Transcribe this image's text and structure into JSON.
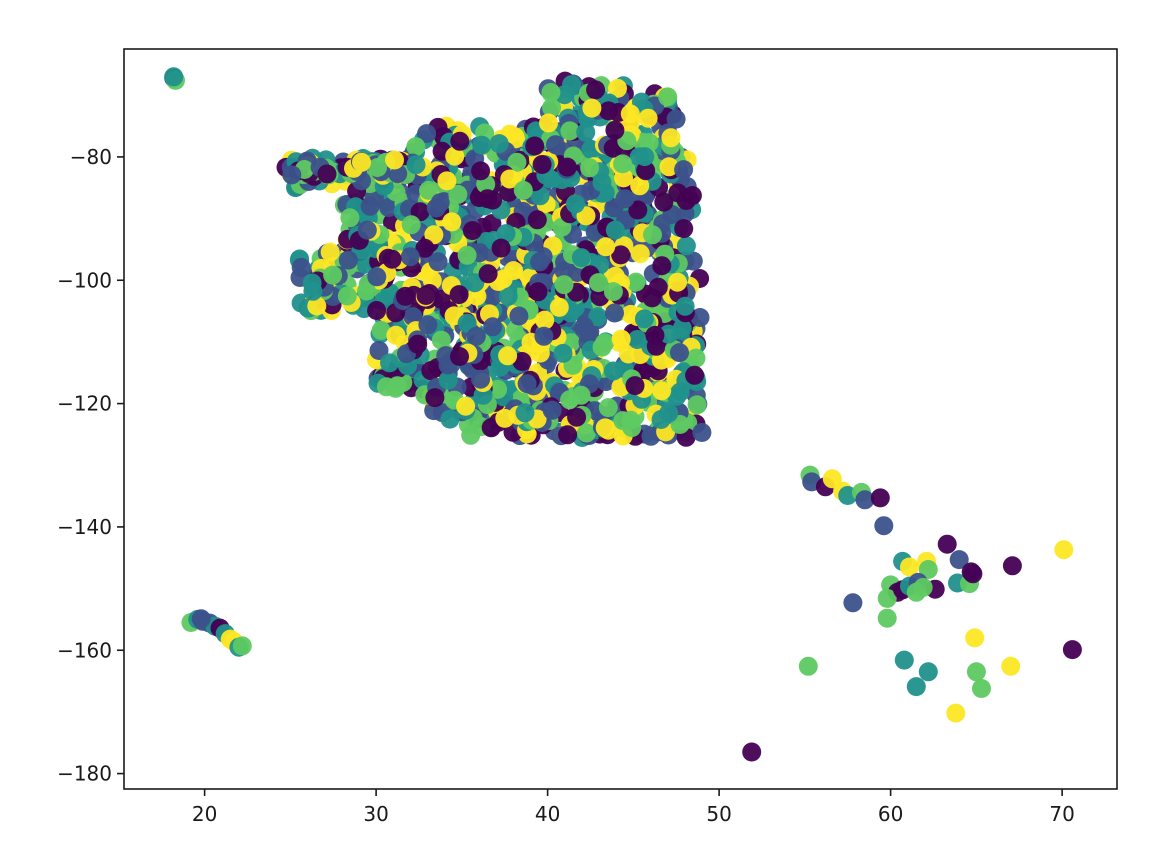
{
  "chart_data": {
    "type": "scatter",
    "title": "",
    "xlabel": "",
    "ylabel": "",
    "xlim": [
      15.3,
      73.2
    ],
    "ylim": [
      -182.5,
      -62.5
    ],
    "x_ticks": [
      20,
      30,
      40,
      50,
      60,
      70
    ],
    "y_ticks": [
      -180,
      -160,
      -140,
      -120,
      -100,
      -80
    ],
    "x_tick_labels": [
      "20",
      "30",
      "40",
      "50",
      "60",
      "70"
    ],
    "y_tick_labels": [
      "−180",
      "−160",
      "−140",
      "−120",
      "−100",
      "−80"
    ],
    "grid": false,
    "legend": "none",
    "colormap": "viridis",
    "colors": [
      "#440154",
      "#3b528b",
      "#21918c",
      "#5ec962",
      "#fde725"
    ],
    "clusters": [
      {
        "name": "main",
        "xrange": [
          24.5,
          49.0
        ],
        "yrange": [
          -125.5,
          -67.5
        ],
        "approx_points": 1500
      },
      {
        "name": "top-left",
        "points": [
          [
            18.2,
            -67.2
          ],
          [
            18.3,
            -67.6
          ],
          [
            18.2,
            -67.0
          ]
        ]
      },
      {
        "name": "lower-left",
        "points": [
          [
            19.2,
            -155.5
          ],
          [
            19.6,
            -155.0
          ],
          [
            19.9,
            -155.3
          ],
          [
            20.3,
            -155.6
          ],
          [
            20.6,
            -156.1
          ],
          [
            20.9,
            -156.4
          ],
          [
            21.2,
            -157.3
          ],
          [
            21.5,
            -158.2
          ],
          [
            21.7,
            -158.6
          ],
          [
            22.0,
            -159.5
          ],
          [
            22.2,
            -159.3
          ],
          [
            19.8,
            -154.9
          ]
        ]
      },
      {
        "name": "lower-right",
        "points": [
          [
            55.3,
            -131.6
          ],
          [
            55.4,
            -132.7
          ],
          [
            56.2,
            -133.5
          ],
          [
            56.6,
            -132.2
          ],
          [
            57.2,
            -134.2
          ],
          [
            57.5,
            -134.9
          ],
          [
            58.3,
            -134.4
          ],
          [
            58.5,
            -135.6
          ],
          [
            59.4,
            -135.3
          ],
          [
            59.6,
            -139.8
          ],
          [
            63.3,
            -142.8
          ],
          [
            64.0,
            -145.3
          ],
          [
            60.7,
            -145.6
          ],
          [
            61.1,
            -146.5
          ],
          [
            62.1,
            -145.6
          ],
          [
            62.2,
            -146.9
          ],
          [
            60.0,
            -149.4
          ],
          [
            60.4,
            -150.6
          ],
          [
            59.8,
            -151.6
          ],
          [
            60.7,
            -150.2
          ],
          [
            61.1,
            -149.6
          ],
          [
            61.6,
            -149.0
          ],
          [
            61.5,
            -150.6
          ],
          [
            62.6,
            -150.1
          ],
          [
            61.9,
            -149.8
          ],
          [
            63.9,
            -149.1
          ],
          [
            64.6,
            -149.2
          ],
          [
            64.8,
            -147.6
          ],
          [
            57.8,
            -152.3
          ],
          [
            59.8,
            -154.8
          ],
          [
            67.1,
            -146.3
          ],
          [
            70.1,
            -143.7
          ],
          [
            70.6,
            -159.9
          ],
          [
            64.9,
            -158.0
          ],
          [
            60.8,
            -161.6
          ],
          [
            61.5,
            -165.9
          ],
          [
            62.2,
            -163.5
          ],
          [
            65.0,
            -163.5
          ],
          [
            65.3,
            -166.2
          ],
          [
            67.0,
            -162.6
          ],
          [
            63.8,
            -170.2
          ],
          [
            55.2,
            -162.6
          ],
          [
            51.9,
            -176.5
          ],
          [
            64.7,
            -147.3
          ]
        ]
      }
    ]
  }
}
